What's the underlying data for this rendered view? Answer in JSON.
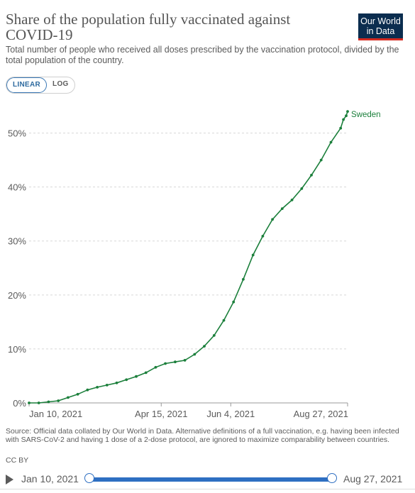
{
  "header": {
    "title": "Share of the population fully vaccinated against COVID-19",
    "subtitle": "Total number of people who received all doses prescribed by the vaccination protocol, divided by the total population of the country.",
    "logo_line1": "Our World",
    "logo_line2": "in Data"
  },
  "scale_toggle": {
    "linear_label": "LINEAR",
    "log_label": "LOG",
    "selected": "LINEAR"
  },
  "colors": {
    "series": "#1b7f3b",
    "grid": "#d8d8d8",
    "axis_text": "#5b5b5b",
    "slider": "#2e6fc2",
    "logo_bg": "#0b2d4f",
    "logo_bar": "#d42b21"
  },
  "chart_data": {
    "type": "line",
    "title": "Share of the population fully vaccinated against COVID-19",
    "xlabel": "",
    "ylabel": "",
    "y_ticks": [
      0,
      10,
      20,
      30,
      40,
      50
    ],
    "y_tick_labels": [
      "0%",
      "10%",
      "20%",
      "30%",
      "40%",
      "50%"
    ],
    "ylim": [
      0,
      54
    ],
    "x_ticks": [
      "2021-01-10",
      "2021-04-15",
      "2021-06-04",
      "2021-08-27"
    ],
    "x_tick_labels": [
      "Jan 10, 2021",
      "Apr 15, 2021",
      "Jun 4, 2021",
      "Aug 27, 2021"
    ],
    "xlim": [
      "2021-01-10",
      "2021-08-27"
    ],
    "grid": true,
    "legend": "end-of-line label",
    "series": [
      {
        "name": "Sweden",
        "x": [
          "2021-01-10",
          "2021-01-17",
          "2021-01-24",
          "2021-01-31",
          "2021-02-07",
          "2021-02-14",
          "2021-02-21",
          "2021-02-28",
          "2021-03-07",
          "2021-03-14",
          "2021-03-21",
          "2021-03-28",
          "2021-04-04",
          "2021-04-11",
          "2021-04-18",
          "2021-04-25",
          "2021-05-02",
          "2021-05-09",
          "2021-05-16",
          "2021-05-23",
          "2021-05-30",
          "2021-06-06",
          "2021-06-13",
          "2021-06-20",
          "2021-06-27",
          "2021-07-04",
          "2021-07-11",
          "2021-07-18",
          "2021-07-25",
          "2021-08-01",
          "2021-08-08",
          "2021-08-15",
          "2021-08-22",
          "2021-08-24",
          "2021-08-26",
          "2021-08-27"
        ],
        "y": [
          0.0,
          0.0,
          0.2,
          0.4,
          1.0,
          1.6,
          2.4,
          2.9,
          3.3,
          3.7,
          4.3,
          4.9,
          5.6,
          6.6,
          7.3,
          7.6,
          7.9,
          9.0,
          10.5,
          12.5,
          15.3,
          18.7,
          22.9,
          27.4,
          30.9,
          34.0,
          36.0,
          37.6,
          39.7,
          42.2,
          45.0,
          48.3,
          50.9,
          52.5,
          53.2,
          54.0
        ]
      }
    ]
  },
  "footer": {
    "sources": "Source: Official data collated by Our World in Data. Alternative definitions of a full vaccination, e.g. having been infected with SARS-CoV-2 and having 1 dose of a 2-dose protocol, are ignored to maximize comparability between countries.",
    "license": "CC BY"
  },
  "timeline": {
    "start_label": "Jan 10, 2021",
    "end_label": "Aug 27, 2021",
    "start_fraction": 0.0,
    "end_fraction": 1.0
  }
}
